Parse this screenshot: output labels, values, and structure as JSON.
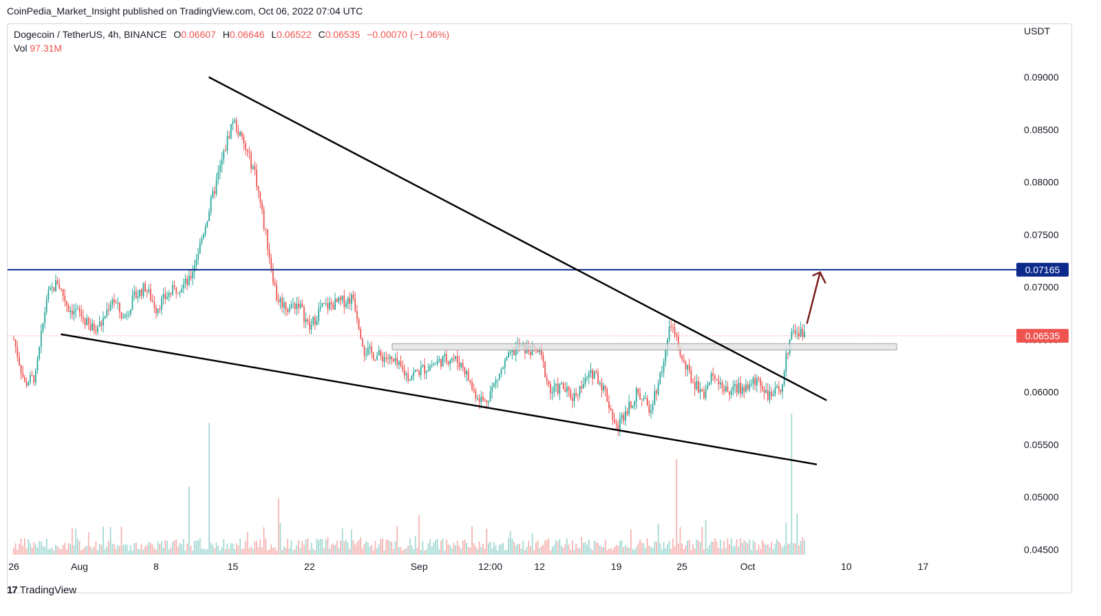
{
  "publisher_line": "CoinPedia_Market_Insight published on TradingView.com, Oct 06, 2022 07:04 UTC",
  "legend": {
    "symbol": "Dogecoin / TetherUS, 4h, BINANCE",
    "open_label": "O",
    "open": "0.06607",
    "high_label": "H",
    "high": "0.06646",
    "low_label": "L",
    "low": "0.06522",
    "close_label": "C",
    "close": "0.06535",
    "change": "−0.00070 (−1.06%)",
    "vol_label": "Vol",
    "vol": "97.31M"
  },
  "currency": "USDT",
  "footer": {
    "logo_mark": "17",
    "brand": "TradingView"
  },
  "colors": {
    "up": "#26a69a",
    "down": "#ef5350",
    "up_vol": "#a3d9d3",
    "down_vol": "#f5b3b1",
    "resistance": "#0c2a8c",
    "trendline": "#000000",
    "arrow": "#7b1a1a",
    "zone": "#e0e0e0"
  },
  "chart_data": {
    "type": "candlestick",
    "y_ticks": [
      "0.09000",
      "0.08500",
      "0.08000",
      "0.07500",
      "0.07000",
      "0.06500",
      "0.06000",
      "0.05500",
      "0.05000",
      "0.04500"
    ],
    "y_tick_values": [
      0.09,
      0.085,
      0.08,
      0.075,
      0.07,
      0.065,
      0.06,
      0.055,
      0.05,
      0.045
    ],
    "ylim": [
      0.0435,
      0.0935
    ],
    "x_ticks": [
      {
        "label": "26",
        "day": 0
      },
      {
        "label": "Aug",
        "day": 6
      },
      {
        "label": "8",
        "day": 13
      },
      {
        "label": "15",
        "day": 20
      },
      {
        "label": "22",
        "day": 27
      },
      {
        "label": "Sep",
        "day": 37
      },
      {
        "label": "12:00",
        "day": 43.5
      },
      {
        "label": "12",
        "day": 48
      },
      {
        "label": "19",
        "day": 55
      },
      {
        "label": "25",
        "day": 61
      },
      {
        "label": "Oct",
        "day": 67
      },
      {
        "label": "10",
        "day": 76
      },
      {
        "label": "17",
        "day": 83
      }
    ],
    "price_path": [
      [
        0,
        0.065
      ],
      [
        1,
        0.0608
      ],
      [
        2,
        0.0615
      ],
      [
        3,
        0.069
      ],
      [
        4,
        0.0705
      ],
      [
        5,
        0.068
      ],
      [
        6,
        0.0675
      ],
      [
        7,
        0.066
      ],
      [
        8,
        0.0665
      ],
      [
        9,
        0.069
      ],
      [
        10,
        0.067
      ],
      [
        11,
        0.069
      ],
      [
        12,
        0.07
      ],
      [
        13,
        0.068
      ],
      [
        14,
        0.0692
      ],
      [
        15,
        0.07
      ],
      [
        16,
        0.0705
      ],
      [
        17,
        0.074
      ],
      [
        18,
        0.078
      ],
      [
        19,
        0.082
      ],
      [
        20,
        0.086
      ],
      [
        21,
        0.0835
      ],
      [
        22,
        0.081
      ],
      [
        23,
        0.075
      ],
      [
        24,
        0.069
      ],
      [
        25,
        0.068
      ],
      [
        26,
        0.0685
      ],
      [
        27,
        0.066
      ],
      [
        28,
        0.068
      ],
      [
        29,
        0.0683
      ],
      [
        30,
        0.0686
      ],
      [
        31,
        0.069
      ],
      [
        32,
        0.064
      ],
      [
        33,
        0.0635
      ],
      [
        34,
        0.0633
      ],
      [
        35,
        0.0625
      ],
      [
        36,
        0.0615
      ],
      [
        37,
        0.062
      ],
      [
        38,
        0.0625
      ],
      [
        39,
        0.063
      ],
      [
        40,
        0.0633
      ],
      [
        41,
        0.0625
      ],
      [
        42,
        0.06
      ],
      [
        43,
        0.059
      ],
      [
        44,
        0.061
      ],
      [
        45,
        0.063
      ],
      [
        46,
        0.0643
      ],
      [
        47,
        0.064
      ],
      [
        48,
        0.0638
      ],
      [
        49,
        0.06
      ],
      [
        50,
        0.0605
      ],
      [
        51,
        0.0595
      ],
      [
        52,
        0.0608
      ],
      [
        53,
        0.062
      ],
      [
        54,
        0.06
      ],
      [
        55,
        0.0565
      ],
      [
        56,
        0.0585
      ],
      [
        57,
        0.06
      ],
      [
        58,
        0.0583
      ],
      [
        59,
        0.0615
      ],
      [
        60,
        0.0665
      ],
      [
        61,
        0.063
      ],
      [
        62,
        0.061
      ],
      [
        63,
        0.06
      ],
      [
        64,
        0.0618
      ],
      [
        65,
        0.06
      ],
      [
        66,
        0.0603
      ],
      [
        67,
        0.0605
      ],
      [
        68,
        0.0612
      ],
      [
        69,
        0.0595
      ],
      [
        70,
        0.0603
      ],
      [
        71,
        0.066
      ],
      [
        72,
        0.0655
      ]
    ],
    "volume_spikes": [
      [
        17.8,
        0.58
      ],
      [
        16.0,
        0.3
      ],
      [
        60.5,
        0.42
      ],
      [
        71.0,
        0.62
      ],
      [
        71.5,
        0.18
      ],
      [
        24.2,
        0.25
      ]
    ],
    "last_price": 0.06535,
    "last_price_label": "0.06535",
    "resistance_level": 0.07165,
    "resistance_label": "0.07165",
    "zone": [
      0.064,
      0.0646
    ],
    "trendlines": [
      {
        "name": "upper-trendline",
        "from": [
          17.8,
          0.09
        ],
        "to": [
          74.2,
          0.0592
        ]
      },
      {
        "name": "lower-trendline",
        "from": [
          4.3,
          0.0655
        ],
        "to": [
          73.3,
          0.0531
        ]
      }
    ],
    "arrow": {
      "from": [
        72.4,
        0.0665
      ],
      "to": [
        73.6,
        0.0714
      ]
    }
  }
}
